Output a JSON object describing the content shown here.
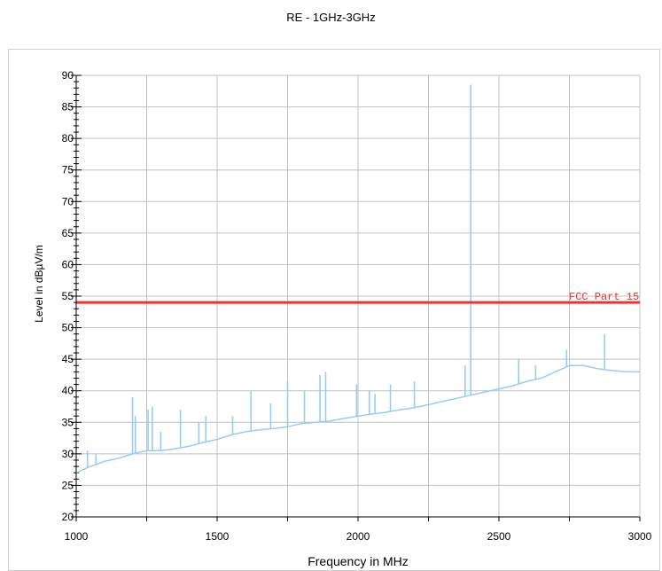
{
  "chart_data": {
    "type": "line",
    "title": "RE - 1GHz-3GHz",
    "xlabel": "Frequency in MHz",
    "ylabel": "Level in dBµV/m",
    "xlim": [
      1000,
      3000
    ],
    "ylim": [
      20,
      90
    ],
    "x_ticks": [
      1000,
      1500,
      2000,
      2500,
      3000
    ],
    "y_ticks": [
      20,
      25,
      30,
      35,
      40,
      45,
      50,
      55,
      60,
      65,
      70,
      75,
      80,
      85,
      90
    ],
    "grid": true,
    "series": [
      {
        "role": "measurement",
        "color": "#99ccf5",
        "x": [
          1000,
          1050,
          1100,
          1150,
          1200,
          1250,
          1300,
          1350,
          1400,
          1450,
          1500,
          1550,
          1600,
          1650,
          1700,
          1750,
          1800,
          1850,
          1900,
          1950,
          2000,
          2050,
          2100,
          2150,
          2200,
          2250,
          2300,
          2350,
          2400,
          2450,
          2500,
          2550,
          2600,
          2650,
          2700,
          2750,
          2800,
          2850,
          2900,
          2950,
          3000
        ],
        "y": [
          27,
          28,
          28.8,
          29.3,
          30,
          30.5,
          30.5,
          30.8,
          31.2,
          31.8,
          32.3,
          33,
          33.5,
          33.8,
          34,
          34.3,
          34.8,
          35,
          35.2,
          35.6,
          36,
          36.3,
          36.6,
          37,
          37.3,
          37.8,
          38.3,
          38.8,
          39.3,
          39.8,
          40.3,
          40.8,
          41.5,
          42,
          43,
          44,
          44,
          43.5,
          43.2,
          43,
          43
        ]
      }
    ],
    "spikes": [
      {
        "x": 1040,
        "y": 30.5
      },
      {
        "x": 1070,
        "y": 30
      },
      {
        "x": 1200,
        "y": 39
      },
      {
        "x": 1210,
        "y": 36
      },
      {
        "x": 1255,
        "y": 37
      },
      {
        "x": 1270,
        "y": 37.5
      },
      {
        "x": 1300,
        "y": 33.5
      },
      {
        "x": 1370,
        "y": 37
      },
      {
        "x": 1435,
        "y": 35
      },
      {
        "x": 1460,
        "y": 36
      },
      {
        "x": 1555,
        "y": 36
      },
      {
        "x": 1620,
        "y": 40
      },
      {
        "x": 1690,
        "y": 38
      },
      {
        "x": 1750,
        "y": 41.5
      },
      {
        "x": 1810,
        "y": 40
      },
      {
        "x": 1865,
        "y": 42.5
      },
      {
        "x": 1885,
        "y": 43
      },
      {
        "x": 1995,
        "y": 41
      },
      {
        "x": 2040,
        "y": 40
      },
      {
        "x": 2060,
        "y": 39.5
      },
      {
        "x": 2115,
        "y": 41
      },
      {
        "x": 2200,
        "y": 41.5
      },
      {
        "x": 2380,
        "y": 44
      },
      {
        "x": 2400,
        "y": 88.5
      },
      {
        "x": 2570,
        "y": 45
      },
      {
        "x": 2630,
        "y": 44
      },
      {
        "x": 2740,
        "y": 46.5
      },
      {
        "x": 2875,
        "y": 49
      }
    ],
    "limit_line": {
      "name": "FCC Part 15",
      "value": 54,
      "color": "#ee3333"
    }
  }
}
